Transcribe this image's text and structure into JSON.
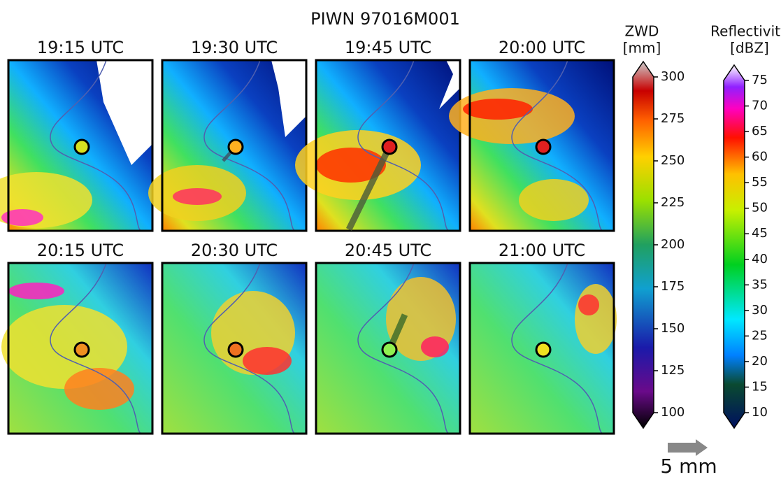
{
  "title": "PIWN 97016M001",
  "panels": [
    {
      "time": "19:15 UTC"
    },
    {
      "time": "19:30 UTC"
    },
    {
      "time": "19:45 UTC"
    },
    {
      "time": "20:00 UTC"
    },
    {
      "time": "20:15 UTC"
    },
    {
      "time": "20:30 UTC"
    },
    {
      "time": "20:45 UTC"
    },
    {
      "time": "21:00 UTC"
    }
  ],
  "colorbars": [
    {
      "label": "ZWD",
      "unit": "[mm]",
      "ticks": [
        100,
        125,
        150,
        175,
        200,
        225,
        250,
        275,
        300
      ]
    },
    {
      "label": "Reflectivity",
      "unit": "[dBZ]",
      "ticks": [
        10,
        15,
        20,
        25,
        30,
        35,
        40,
        45,
        50,
        55,
        60,
        65,
        70,
        75
      ]
    }
  ],
  "scale": {
    "label": "5 mm"
  }
}
